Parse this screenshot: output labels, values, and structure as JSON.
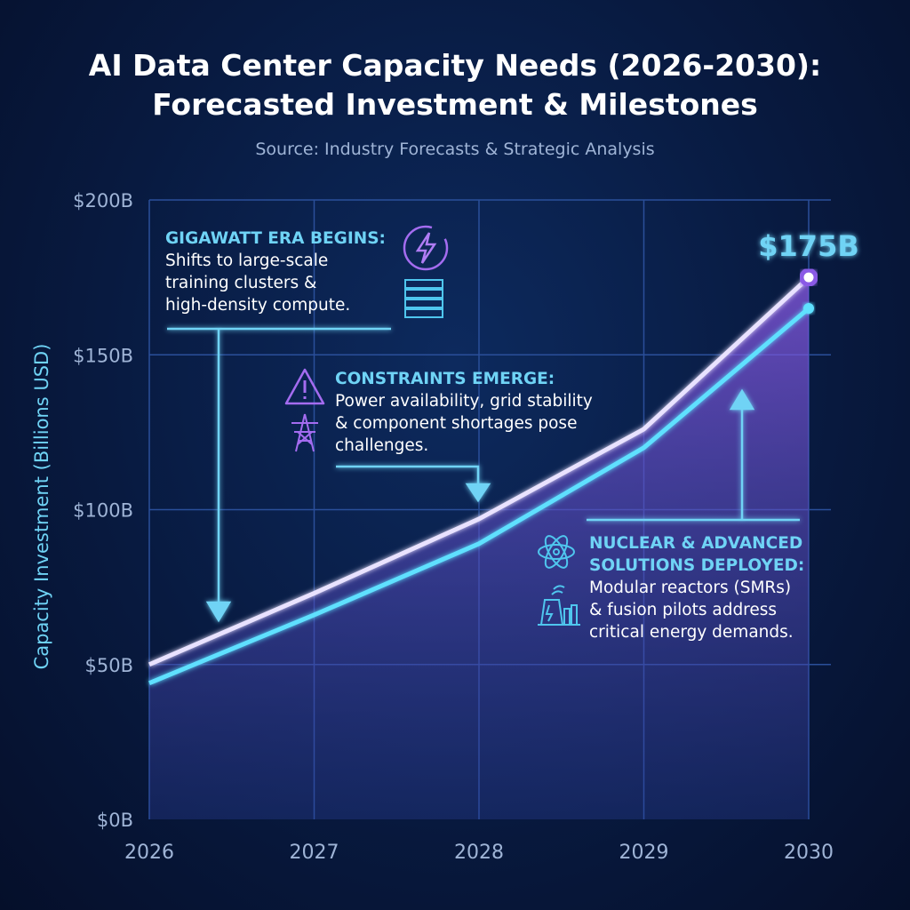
{
  "title": "AI Data Center Capacity Needs (2026-2030): Forecasted Investment & Milestones",
  "subtitle": "Source: Industry Forecasts & Strategic Analysis",
  "colors": {
    "upper_line": "#e9e2ff",
    "lower_line": "#5fe0ff",
    "fill": "#7a4fd6",
    "accent": "#6fd3f5",
    "grid": "#2a4f9a"
  },
  "annotations": [
    {
      "heading": "GIGAWATT ERA BEGINS:",
      "lines": [
        "Shifts to large-scale",
        "training clusters &",
        "high-density compute."
      ],
      "icons": [
        "lightning-icon",
        "server-rack-icon"
      ]
    },
    {
      "heading": "CONSTRAINTS EMERGE:",
      "lines": [
        "Power availability, grid stability",
        "& component shortages pose",
        "challenges."
      ],
      "icons": [
        "warning-icon",
        "power-tower-icon"
      ]
    },
    {
      "heading": [
        "NUCLEAR & ADVANCED",
        "SOLUTIONS DEPLOYED:"
      ],
      "lines": [
        "Modular reactors (SMRs)",
        "& fusion pilots address",
        "critical energy demands."
      ],
      "icons": [
        "atom-icon",
        "power-plant-icon"
      ]
    }
  ],
  "chart_data": {
    "type": "area",
    "title": "AI Data Center Capacity Needs (2026-2030): Forecasted Investment & Milestones",
    "subtitle": "Source: Industry Forecasts & Strategic Analysis",
    "xlabel": "",
    "ylabel": "Capacity Investment (Billions USD)",
    "x": [
      "2026",
      "2027",
      "2028",
      "2029",
      "2030"
    ],
    "ylim": [
      0,
      200
    ],
    "yticks": [
      "$0B",
      "$50B",
      "$100B",
      "$150B",
      "$200B"
    ],
    "yticks_values": [
      0,
      50,
      100,
      150,
      200
    ],
    "grid": true,
    "series": [
      {
        "values": [
          50,
          73,
          97,
          126,
          175
        ],
        "color": "#e9e2ff"
      },
      {
        "values": [
          44,
          66,
          89,
          120,
          165
        ],
        "color": "#5fe0ff"
      }
    ],
    "data_labels": [
      {
        "x": "2030",
        "value": 175,
        "text": "$175B"
      }
    ]
  }
}
